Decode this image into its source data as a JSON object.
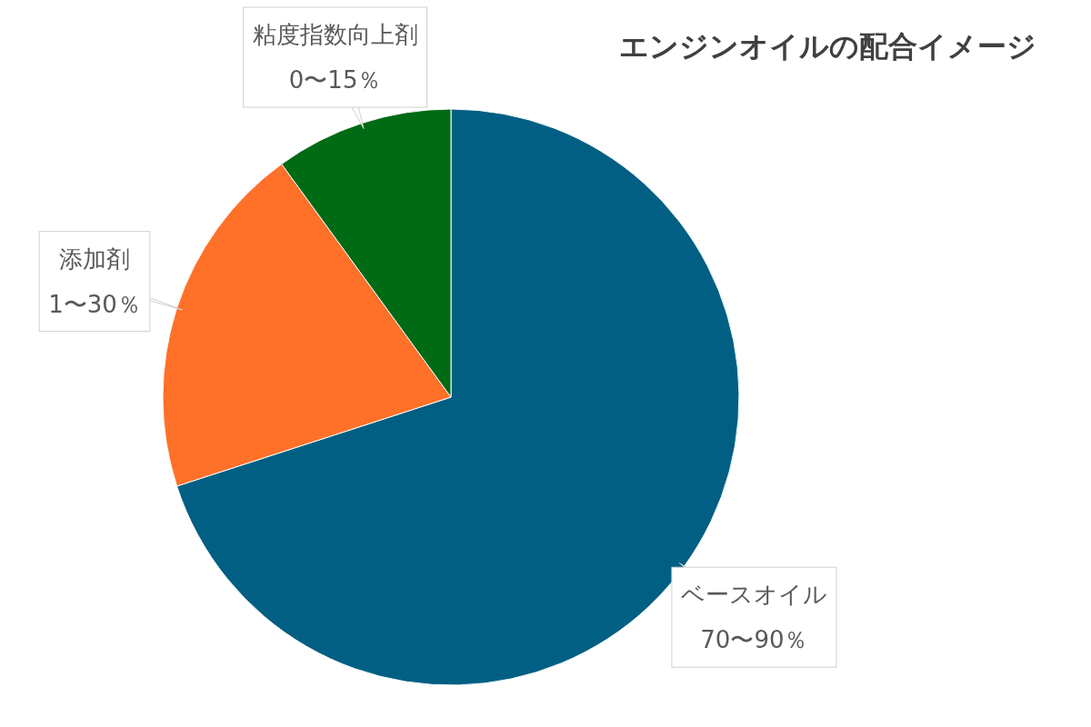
{
  "chart_data": {
    "type": "pie",
    "title": "エンジンオイルの配合イメージ",
    "categories": [
      "ベースオイル",
      "添加剤",
      "粘度指数向上剤"
    ],
    "values": [
      70,
      20,
      10
    ],
    "colors": [
      "#005f83",
      "#ff7029",
      "#006a14"
    ],
    "annotations": [
      "70〜90％",
      "1〜30％",
      "0〜15％"
    ],
    "legend": false
  }
}
